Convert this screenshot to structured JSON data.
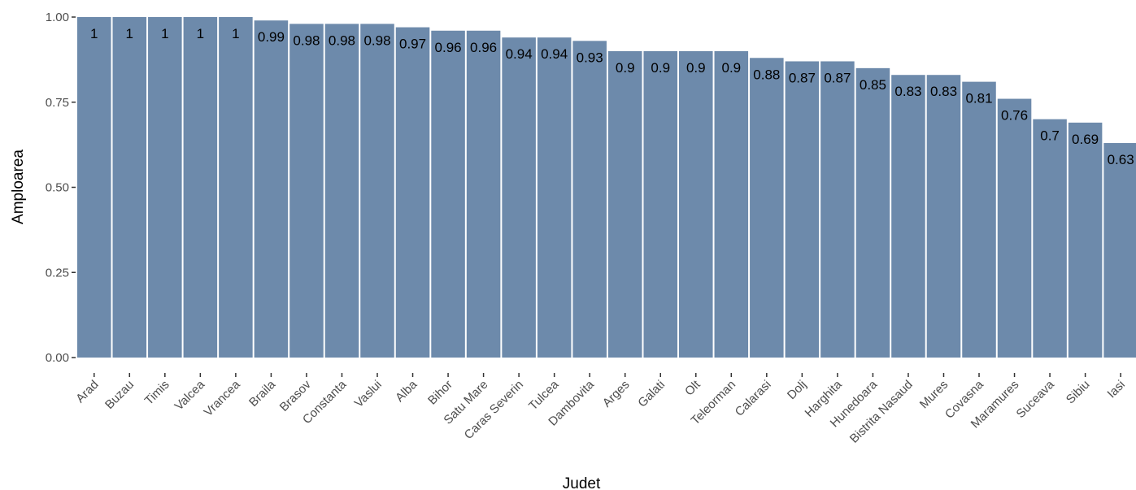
{
  "chart_data": {
    "type": "bar",
    "xlabel": "Judet",
    "ylabel": "Amploarea",
    "ylim": [
      0,
      1
    ],
    "y_ticks": [
      "0.00",
      "0.25",
      "0.50",
      "0.75",
      "1.00"
    ],
    "y_tick_values": [
      0,
      0.25,
      0.5,
      0.75,
      1.0
    ],
    "bar_color": "#6d8aab",
    "bar_edge_color": "#ffffff",
    "grid": false,
    "categories": [
      "Arad",
      "Buzau",
      "Timis",
      "Valcea",
      "Vrancea",
      "Braila",
      "Brasov",
      "Constanta",
      "Vaslui",
      "Alba",
      "Bihor",
      "Satu Mare",
      "Caras Severin",
      "Tulcea",
      "Dambovita",
      "Arges",
      "Galati",
      "Olt",
      "Teleorman",
      "Calarasi",
      "Dolj",
      "Harghita",
      "Hunedoara",
      "Bistrita Nasaud",
      "Mures",
      "Covasna",
      "Maramures",
      "Suceava",
      "Sibiu",
      "Iasi"
    ],
    "values": [
      1,
      1,
      1,
      1,
      1,
      0.99,
      0.98,
      0.98,
      0.98,
      0.97,
      0.96,
      0.96,
      0.94,
      0.94,
      0.93,
      0.9,
      0.9,
      0.9,
      0.9,
      0.88,
      0.87,
      0.87,
      0.85,
      0.83,
      0.83,
      0.81,
      0.76,
      0.7,
      0.69,
      0.63
    ],
    "data_labels": [
      "1",
      "1",
      "1",
      "1",
      "1",
      "0.99",
      "0.98",
      "0.98",
      "0.98",
      "0.97",
      "0.96",
      "0.96",
      "0.94",
      "0.94",
      "0.93",
      "0.9",
      "0.9",
      "0.9",
      "0.9",
      "0.88",
      "0.87",
      "0.87",
      "0.85",
      "0.83",
      "0.83",
      "0.81",
      "0.76",
      "0.7",
      "0.69",
      "0.63"
    ]
  }
}
